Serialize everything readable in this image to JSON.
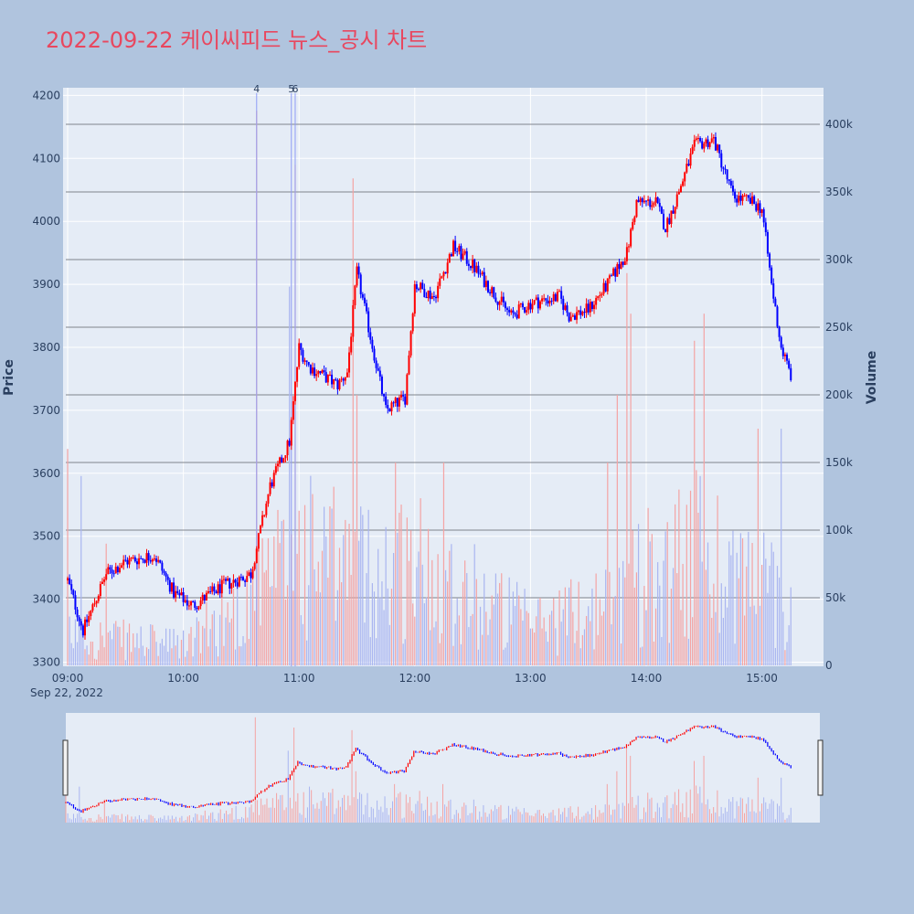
{
  "chart_data": {
    "type": "candlestick",
    "title": "2022-09-22 케이씨피드 뉴스_공시 차트",
    "ylabel": "Price",
    "y2label": "Volume",
    "ylim": [
      3295,
      4205
    ],
    "y2lim": [
      0,
      400000
    ],
    "price_ticks": [
      "3300",
      "3400",
      "3500",
      "3600",
      "3700",
      "3800",
      "3900",
      "4000",
      "4100",
      "4200"
    ],
    "volume_ticks": [
      "0",
      "50k",
      "100k",
      "150k",
      "200k",
      "250k",
      "300k",
      "350k",
      "400k"
    ],
    "time_ticks": [
      "09:00",
      "10:00",
      "11:00",
      "12:00",
      "13:00",
      "14:00",
      "15:00"
    ],
    "date_label": "Sep 22, 2022",
    "up_color": "#ff0000",
    "down_color": "#0000ff",
    "annotations": [
      {
        "label": "4",
        "time": "10:38"
      },
      {
        "label": "5",
        "time": "10:56"
      },
      {
        "label": "6",
        "time": "10:58"
      }
    ],
    "anchors": [
      [
        "09:00",
        3430
      ],
      [
        "09:08",
        3350
      ],
      [
        "09:20",
        3440
      ],
      [
        "09:30",
        3460
      ],
      [
        "09:45",
        3470
      ],
      [
        "09:55",
        3410
      ],
      [
        "10:05",
        3390
      ],
      [
        "10:20",
        3420
      ],
      [
        "10:35",
        3440
      ],
      [
        "10:45",
        3580
      ],
      [
        "10:55",
        3650
      ],
      [
        "11:00",
        3800
      ],
      [
        "11:05",
        3770
      ],
      [
        "11:20",
        3740
      ],
      [
        "11:25",
        3760
      ],
      [
        "11:30",
        3920
      ],
      [
        "11:45",
        3700
      ],
      [
        "11:55",
        3720
      ],
      [
        "12:00",
        3900
      ],
      [
        "12:10",
        3880
      ],
      [
        "12:20",
        3960
      ],
      [
        "12:30",
        3930
      ],
      [
        "12:40",
        3890
      ],
      [
        "12:50",
        3850
      ],
      [
        "13:00",
        3870
      ],
      [
        "13:15",
        3880
      ],
      [
        "13:20",
        3850
      ],
      [
        "13:30",
        3860
      ],
      [
        "13:40",
        3900
      ],
      [
        "13:50",
        3950
      ],
      [
        "13:55",
        4030
      ],
      [
        "14:05",
        4030
      ],
      [
        "14:10",
        3990
      ],
      [
        "14:15",
        4030
      ],
      [
        "14:25",
        4120
      ],
      [
        "14:35",
        4130
      ],
      [
        "14:45",
        4040
      ],
      [
        "14:55",
        4030
      ],
      [
        "15:00",
        4020
      ],
      [
        "15:05",
        3900
      ],
      [
        "15:10",
        3800
      ],
      [
        "15:15",
        3755
      ]
    ],
    "volume_levels": [
      [
        "09:00",
        30000
      ],
      [
        "09:30",
        25000
      ],
      [
        "10:00",
        20000
      ],
      [
        "10:40",
        70000
      ],
      [
        "11:00",
        110000
      ],
      [
        "11:30",
        90000
      ],
      [
        "12:00",
        100000
      ],
      [
        "12:30",
        70000
      ],
      [
        "13:00",
        40000
      ],
      [
        "13:40",
        60000
      ],
      [
        "14:00",
        90000
      ],
      [
        "14:30",
        110000
      ],
      [
        "15:00",
        80000
      ],
      [
        "15:15",
        70000
      ]
    ],
    "volume_spikes": [
      [
        "09:00",
        160000
      ],
      [
        "09:07",
        140000
      ],
      [
        "09:20",
        90000
      ],
      [
        "10:38",
        410000
      ],
      [
        "10:55",
        280000
      ],
      [
        "10:58",
        370000
      ],
      [
        "11:28",
        360000
      ],
      [
        "11:30",
        200000
      ],
      [
        "11:50",
        150000
      ],
      [
        "12:15",
        150000
      ],
      [
        "13:40",
        150000
      ],
      [
        "13:45",
        200000
      ],
      [
        "13:50",
        290000
      ],
      [
        "13:52",
        260000
      ],
      [
        "14:17",
        130000
      ],
      [
        "14:25",
        240000
      ],
      [
        "14:30",
        260000
      ],
      [
        "14:58",
        175000
      ],
      [
        "15:10",
        175000
      ]
    ]
  }
}
